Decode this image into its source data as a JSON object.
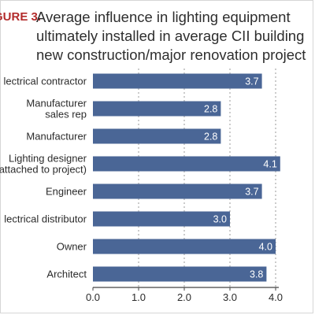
{
  "figure_label": "GURE 3.",
  "title_lines": [
    "Average influence in lighting equipment",
    "ultimately installed in average CII building",
    "new construction/major renovation project"
  ],
  "colors": {
    "bar": "#4a6696",
    "bar_label": "#ffffff",
    "figure_label": "#b22a2a",
    "grid": "#9a9a9a",
    "axis": "#444444"
  },
  "chart_data": {
    "type": "bar",
    "orientation": "horizontal",
    "title": "Average influence in lighting equipment ultimately installed in average CII building new construction/major renovation project",
    "categories": [
      [
        "lectrical contractor"
      ],
      [
        "Manufacturer",
        "sales rep"
      ],
      [
        "Manufacturer"
      ],
      [
        "Lighting designer",
        "attached to project)"
      ],
      [
        "Engineer"
      ],
      [
        "lectrical distributor"
      ],
      [
        "Owner"
      ],
      [
        "Architect"
      ]
    ],
    "values": [
      3.7,
      2.8,
      2.8,
      4.1,
      3.7,
      3.0,
      4.0,
      3.8
    ],
    "value_labels": [
      "3.7",
      "2.8",
      "2.8",
      "4.1",
      "3.7",
      "3.0",
      "4.0",
      "3.8"
    ],
    "xlim": [
      0,
      4.0
    ],
    "xticks": [
      0,
      1,
      2,
      3,
      4
    ],
    "xtick_labels": [
      "0.0",
      "1.0",
      "2.0",
      "3.0",
      "4.0"
    ],
    "xlabel": "",
    "ylabel": "",
    "grid": "vertical"
  }
}
